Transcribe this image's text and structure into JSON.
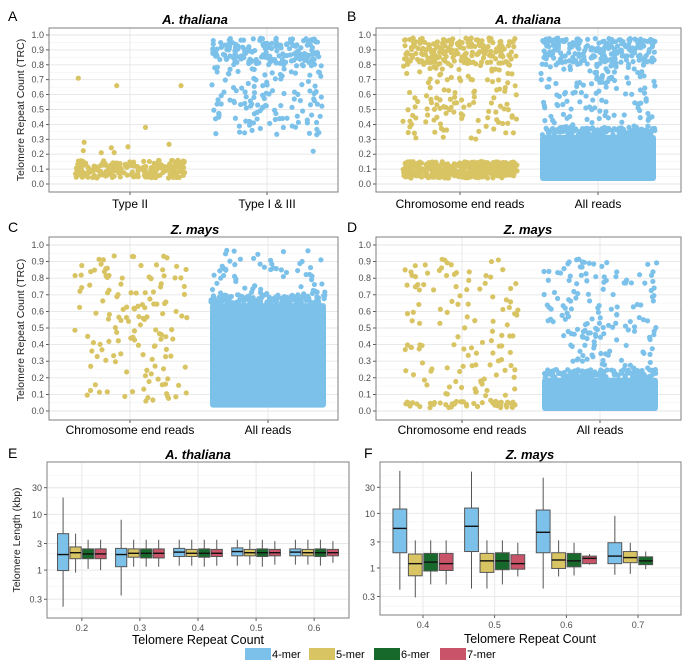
{
  "colors": {
    "4-mer": "#7cc1ea",
    "5-mer": "#d9c464",
    "6-mer": "#17692b",
    "7-mer": "#c95369",
    "chromosome_end": "#d9c464",
    "all_reads": "#7cc1ea"
  },
  "legend": {
    "entries": [
      "4-mer",
      "5-mer",
      "6-mer",
      "7-mer"
    ],
    "placement": "bottom-center"
  },
  "chart_data": [
    {
      "panel": "A",
      "type": "scatter",
      "title": "A. thaliana",
      "xlabel": "",
      "ylabel": "Telomere Repeat Count (TRC)",
      "categories": [
        "Type II",
        "Type I & III"
      ],
      "yticks": [
        "0.0",
        "0.1",
        "0.2",
        "0.3",
        "0.4",
        "0.5",
        "0.6",
        "0.7",
        "0.8",
        "0.9",
        "1.0"
      ],
      "ylim": [
        0,
        1.0
      ],
      "grid": true,
      "series": [
        {
          "name": "Type II",
          "color_key": "chromosome_end",
          "bulk_range": [
            0.04,
            0.16
          ],
          "bulk_count": 220,
          "sparse_range": [
            0.16,
            0.4
          ],
          "sparse_count": 4,
          "outliers": [
            0.71,
            0.66,
            0.66,
            0.38,
            0.28,
            0.25,
            0.21
          ]
        },
        {
          "name": "Type I & III",
          "color_key": "all_reads",
          "dense_range": [
            0.8,
            0.98
          ],
          "dense_count": 180,
          "sparse_range": [
            0.33,
            0.8
          ],
          "sparse_count": 130,
          "outliers": [
            0.22
          ]
        }
      ]
    },
    {
      "panel": "B",
      "type": "scatter",
      "title": "A. thaliana",
      "xlabel": "",
      "ylabel": "",
      "categories": [
        "Chromosome end reads",
        "All reads"
      ],
      "yticks": [
        "0.0",
        "0.1",
        "0.2",
        "0.3",
        "0.4",
        "0.5",
        "0.6",
        "0.7",
        "0.8",
        "0.9",
        "1.0"
      ],
      "ylim": [
        0,
        1.0
      ],
      "grid": true,
      "series": [
        {
          "name": "Chromosome end reads",
          "color_key": "chromosome_end",
          "bulk_range": [
            0.04,
            0.15
          ],
          "bulk_count": 400,
          "dense_range": [
            0.8,
            0.98
          ],
          "dense_count": 200,
          "sparse_range": [
            0.3,
            0.8
          ],
          "sparse_count": 120
        },
        {
          "name": "All reads",
          "color_key": "all_reads",
          "solid_range": [
            0.02,
            0.33
          ],
          "dense_range": [
            0.8,
            0.98
          ],
          "dense_count": 220,
          "sparse_range": [
            0.33,
            0.8
          ],
          "sparse_count": 140
        }
      ]
    },
    {
      "panel": "C",
      "type": "scatter",
      "title": "Z. mays",
      "xlabel": "",
      "ylabel": "Telomere Repeat Count (TRC)",
      "categories": [
        "Chromosome end reads",
        "All reads"
      ],
      "yticks": [
        "0.0",
        "0.1",
        "0.2",
        "0.3",
        "0.4",
        "0.5",
        "0.6",
        "0.7",
        "0.8",
        "0.9",
        "1.0"
      ],
      "ylim": [
        0,
        1.0
      ],
      "grid": true,
      "series": [
        {
          "name": "Chromosome end reads",
          "color_key": "chromosome_end",
          "sparse_range": [
            0.06,
            0.94
          ],
          "sparse_count": 140
        },
        {
          "name": "All reads",
          "color_key": "all_reads",
          "solid_range": [
            0.02,
            0.65
          ],
          "sparse_range": [
            0.65,
            0.97
          ],
          "sparse_count": 70
        }
      ]
    },
    {
      "panel": "D",
      "type": "scatter",
      "title": "Z. mays",
      "xlabel": "",
      "ylabel": "",
      "categories": [
        "Chromosome end reads",
        "All reads"
      ],
      "yticks": [
        "0.0",
        "0.1",
        "0.2",
        "0.3",
        "0.4",
        "0.5",
        "0.6",
        "0.7",
        "0.8",
        "0.9",
        "1.0"
      ],
      "ylim": [
        0,
        1.0
      ],
      "grid": true,
      "series": [
        {
          "name": "Chromosome end reads",
          "color_key": "chromosome_end",
          "bulk_range": [
            0.02,
            0.06
          ],
          "bulk_count": 45,
          "sparse_range": [
            0.06,
            0.93
          ],
          "sparse_count": 120
        },
        {
          "name": "All reads",
          "color_key": "all_reads",
          "solid_range": [
            0.0,
            0.2
          ],
          "sparse_range": [
            0.2,
            0.92
          ],
          "sparse_count": 170
        }
      ]
    },
    {
      "panel": "E",
      "type": "box",
      "title": "A. thaliana",
      "xlabel": "Telomere Repeat Count",
      "ylabel": "Telomere Length (kbp)",
      "yscale": "log",
      "yticks": [
        "0.3",
        "1",
        "3",
        "10",
        "30"
      ],
      "ylim": [
        0.15,
        80
      ],
      "grid": true,
      "categories": [
        "0.2",
        "0.3",
        "0.4",
        "0.5",
        "0.6"
      ],
      "series_names": [
        "4-mer",
        "5-mer",
        "6-mer",
        "7-mer"
      ],
      "boxes": [
        [
          [
            0.22,
            0.98,
            1.9,
            4.5,
            20
          ],
          [
            0.9,
            1.6,
            2.05,
            2.6,
            4.5
          ],
          [
            1.05,
            1.6,
            1.95,
            2.4,
            3.5
          ],
          [
            1.0,
            1.6,
            1.95,
            2.4,
            3.5
          ]
        ],
        [
          [
            0.35,
            1.15,
            1.9,
            2.45,
            8.0
          ],
          [
            1.15,
            1.7,
            2.0,
            2.4,
            3.5
          ],
          [
            1.15,
            1.65,
            2.0,
            2.4,
            3.5
          ],
          [
            1.15,
            1.65,
            2.0,
            2.4,
            3.5
          ]
        ],
        [
          [
            1.2,
            1.75,
            2.1,
            2.45,
            3.5
          ],
          [
            1.2,
            1.75,
            2.0,
            2.35,
            3.5
          ],
          [
            1.15,
            1.7,
            2.0,
            2.4,
            3.5
          ],
          [
            1.2,
            1.75,
            2.0,
            2.35,
            3.5
          ]
        ],
        [
          [
            1.2,
            1.8,
            2.15,
            2.5,
            3.5
          ],
          [
            1.25,
            1.8,
            2.05,
            2.35,
            3.5
          ],
          [
            1.15,
            1.75,
            2.05,
            2.4,
            3.5
          ],
          [
            1.25,
            1.8,
            2.05,
            2.35,
            3.3
          ]
        ],
        [
          [
            1.25,
            1.8,
            2.1,
            2.4,
            3.5
          ],
          [
            1.25,
            1.8,
            2.05,
            2.35,
            3.5
          ],
          [
            1.2,
            1.75,
            2.05,
            2.4,
            3.5
          ],
          [
            1.35,
            1.8,
            2.05,
            2.35,
            3.3
          ]
        ]
      ]
    },
    {
      "panel": "F",
      "type": "box",
      "title": "Z. mays",
      "xlabel": "Telomere Repeat Count",
      "ylabel": "",
      "yscale": "log",
      "yticks": [
        "0.3",
        "1",
        "3",
        "10",
        "30"
      ],
      "ylim": [
        0.15,
        80
      ],
      "grid": true,
      "categories": [
        "0.4",
        "0.5",
        "0.6",
        "0.7"
      ],
      "series_names": [
        "4-mer",
        "5-mer",
        "6-mer",
        "7-mer"
      ],
      "boxes": [
        [
          [
            0.4,
            1.9,
            5.3,
            12.0,
            60
          ],
          [
            0.29,
            0.72,
            1.2,
            1.8,
            3.2
          ],
          [
            0.5,
            0.88,
            1.28,
            1.85,
            3.2
          ],
          [
            0.5,
            0.9,
            1.2,
            1.85,
            3.2
          ]
        ],
        [
          [
            0.42,
            2.0,
            5.8,
            12.5,
            58
          ],
          [
            0.42,
            0.83,
            1.35,
            1.85,
            3.2
          ],
          [
            0.5,
            0.93,
            1.35,
            1.9,
            3.2
          ],
          [
            0.7,
            0.95,
            1.2,
            1.75,
            2.9
          ]
        ],
        [
          [
            0.42,
            1.9,
            4.5,
            11.5,
            45
          ],
          [
            0.7,
            0.98,
            1.4,
            1.9,
            3.2
          ],
          [
            0.73,
            1.05,
            1.35,
            1.85,
            2.9
          ],
          [
            1.15,
            1.2,
            1.5,
            1.65,
            1.8
          ]
        ],
        [
          [
            0.75,
            1.2,
            1.65,
            2.9,
            9.0
          ],
          [
            0.78,
            1.25,
            1.55,
            2.0,
            2.9
          ],
          [
            0.95,
            1.15,
            1.35,
            1.6,
            2.0
          ],
          null
        ]
      ]
    }
  ],
  "panels": {
    "A": {
      "label": "A",
      "title": "A. thaliana",
      "ylabel": "Telomere Repeat Count (TRC)",
      "x": [
        "Type II",
        "Type I & III"
      ]
    },
    "B": {
      "label": "B",
      "title": "A. thaliana",
      "x": [
        "Chromosome end reads",
        "All reads"
      ]
    },
    "C": {
      "label": "C",
      "title": "Z. mays",
      "ylabel": "Telomere Repeat Count (TRC)",
      "x": [
        "Chromosome end reads",
        "All reads"
      ]
    },
    "D": {
      "label": "D",
      "title": "Z. mays",
      "x": [
        "Chromosome end reads",
        "All reads"
      ]
    },
    "E": {
      "label": "E",
      "title": "A. thaliana",
      "ylabel": "Telomere Length (kbp)",
      "xlabel": "Telomere Repeat Count"
    },
    "F": {
      "label": "F",
      "title": "Z. mays",
      "xlabel": "Telomere Repeat Count"
    }
  }
}
